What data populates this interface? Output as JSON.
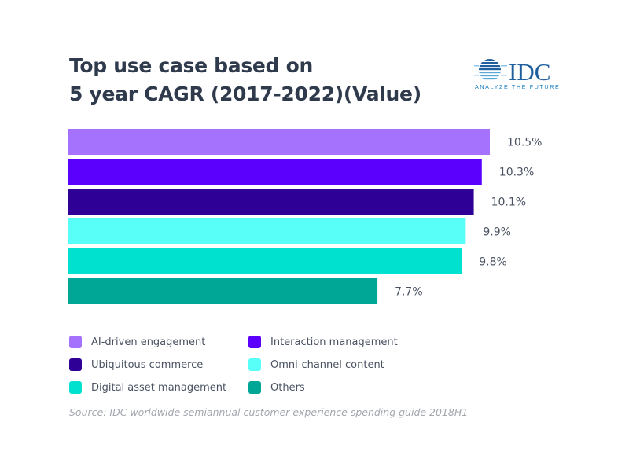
{
  "title_line1": "Top use case based on",
  "title_line2": "5 year CAGR (2017-2022)(Value)",
  "logo": {
    "text": "IDC",
    "tagline": "ANALYZE THE FUTURE",
    "color": "#1f5f9e"
  },
  "source": "Source: IDC worldwide semiannual customer experience spending guide 2018H1",
  "chart_data": {
    "type": "bar",
    "orientation": "horizontal",
    "title": "Top use case based on 5 year CAGR (2017-2022)(Value)",
    "categories": [
      "AI-driven engagement",
      "Interaction management",
      "Ubiquitous commerce",
      "Omni-channel content",
      "Digital asset management",
      "Others"
    ],
    "values": [
      10.5,
      10.3,
      10.1,
      9.9,
      9.8,
      7.7
    ],
    "data_labels": [
      "10.5%",
      "10.3%",
      "10.1%",
      "9.9%",
      "9.8%",
      "7.7%"
    ],
    "colors": [
      "#a472fc",
      "#5c00fd",
      "#2e0095",
      "#58fff8",
      "#00e2cf",
      "#00a696"
    ],
    "unit": "%",
    "xlim": [
      0,
      10.5
    ],
    "grid": false,
    "legend_position": "bottom"
  }
}
